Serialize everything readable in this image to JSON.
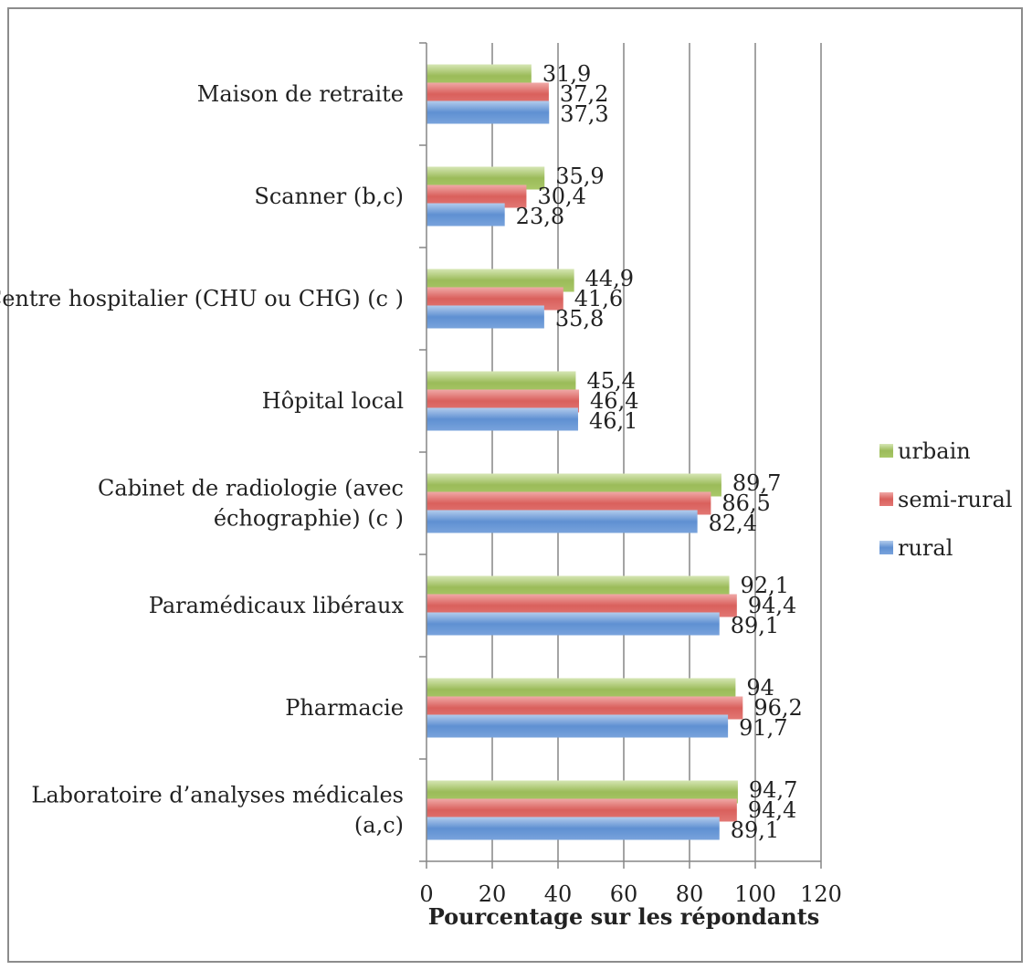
{
  "chart_data": {
    "type": "bar",
    "orientation": "horizontal",
    "categories": [
      "Maison de retraite",
      "Scanner (b,c)",
      "Centre hospitalier (CHU ou CHG) (c )",
      "Hôpital local",
      "Cabinet de radiologie (avec échographie) (c )",
      "Paramédicaux libéraux",
      "Pharmacie",
      "Laboratoire d’analyses médicales (a,c)"
    ],
    "category_lines": [
      [
        "Maison de retraite"
      ],
      [
        "Scanner (b,c)"
      ],
      [
        "Centre hospitalier (CHU ou CHG) (c )"
      ],
      [
        "Hôpital local"
      ],
      [
        "Cabinet de radiologie (avec",
        "échographie) (c )"
      ],
      [
        "Paramédicaux libéraux"
      ],
      [
        "Pharmacie"
      ],
      [
        "Laboratoire d’analyses médicales",
        "(a,c)"
      ]
    ],
    "series": [
      {
        "name": "urbain",
        "color": "#9bbb59",
        "values": [
          31.9,
          35.9,
          44.9,
          45.4,
          89.7,
          92.1,
          94,
          94.7
        ],
        "labels": [
          "31,9",
          "35,9",
          "44,9",
          "45,4",
          "89,7",
          "92,1",
          "94",
          "94,7"
        ]
      },
      {
        "name": "semi-rural",
        "color": "#c0504d",
        "values": [
          37.2,
          30.4,
          41.6,
          46.4,
          86.5,
          94.4,
          96.2,
          94.4
        ],
        "labels": [
          "37,2",
          "30,4",
          "41,6",
          "46,4",
          "86,5",
          "94,4",
          "96,2",
          "94,4"
        ]
      },
      {
        "name": "rural",
        "color": "#4f81bd",
        "values": [
          37.3,
          23.8,
          35.8,
          46.1,
          82.4,
          89.1,
          91.7,
          89.1
        ],
        "labels": [
          "37,3",
          "23,8",
          "35,8",
          "46,1",
          "82,4",
          "89,1",
          "91,7",
          "89,1"
        ]
      }
    ],
    "xlim": [
      0,
      120
    ],
    "xticks": [
      0,
      20,
      40,
      60,
      80,
      100,
      120
    ],
    "xlabel": "Pourcentage sur les répondants",
    "ylabel": "",
    "title": "",
    "grid": true,
    "legend_position": "right"
  }
}
